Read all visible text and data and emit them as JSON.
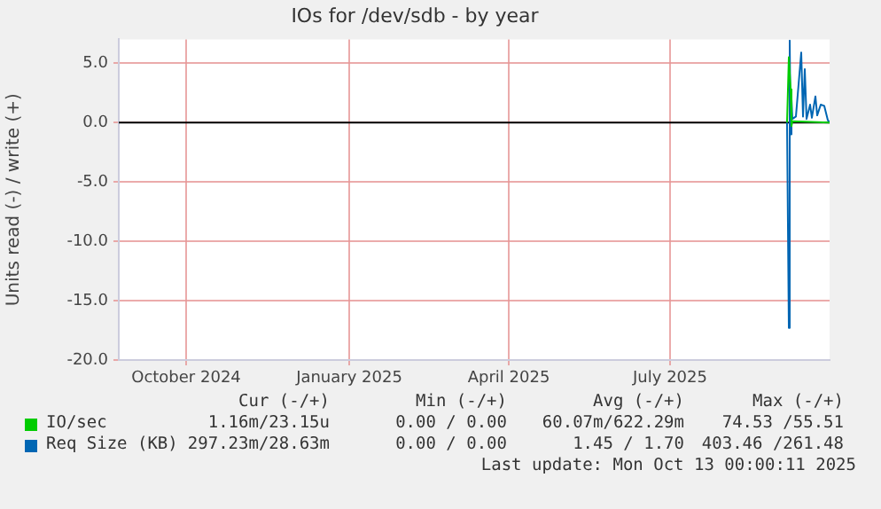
{
  "chart_data": {
    "type": "line",
    "title": "IOs for /dev/sdb - by year",
    "ylabel": "Units read (-) / write (+)",
    "xlim": [
      "2024-09-07",
      "2025-10-13"
    ],
    "xticks": [
      {
        "value": "2024-10-15",
        "label": "October 2024"
      },
      {
        "value": "2025-01-15",
        "label": "January 2025"
      },
      {
        "value": "2025-04-15",
        "label": "April 2025"
      },
      {
        "value": "2025-07-15",
        "label": "July 2025"
      }
    ],
    "ylim": [
      -20,
      7
    ],
    "yticks": [
      {
        "value": -20,
        "label": "-20.0"
      },
      {
        "value": -15,
        "label": "-15.0"
      },
      {
        "value": -10,
        "label": "-10.0"
      },
      {
        "value": -5,
        "label": "-5.0"
      },
      {
        "value": 0,
        "label": "0.0"
      },
      {
        "value": 5,
        "label": "5.0"
      }
    ],
    "grid": true,
    "legend": "bottom",
    "marker": "none",
    "line_style": "solid",
    "ref_lines": [
      {
        "axis": "y",
        "value": 0,
        "color": "#000000"
      }
    ],
    "series": [
      {
        "name": "IO/sec",
        "color": "#00cc00",
        "x": [
          "2025-09-19",
          "2025-09-20",
          "2025-09-21",
          "2025-09-21T12:00",
          "2025-09-22",
          "2025-10-13"
        ],
        "values": [
          0,
          5.5,
          2.8,
          -0.3,
          0.1,
          0
        ]
      },
      {
        "name": "Req Size (KB)",
        "color": "#0066b3",
        "x": [
          "2025-09-19",
          "2025-09-20",
          "2025-09-20T12:00",
          "2025-09-21",
          "2025-09-21T12:00",
          "2025-09-22",
          "2025-09-24",
          "2025-09-27",
          "2025-09-28",
          "2025-09-29",
          "2025-09-30",
          "2025-10-02",
          "2025-10-03",
          "2025-10-05",
          "2025-10-06",
          "2025-10-08",
          "2025-10-10",
          "2025-10-12",
          "2025-10-13"
        ],
        "values": [
          0,
          -17.3,
          6.9,
          -1,
          2,
          0.3,
          0.5,
          5.9,
          0.5,
          4.5,
          0.3,
          1.5,
          0.4,
          2.2,
          0.6,
          1.5,
          1.4,
          0.2,
          0
        ]
      }
    ],
    "annotations": [
      "Cur (-/+)",
      "Min (-/+)",
      "Avg (-/+)",
      "Max (-/+)",
      "1.16m/23.15u",
      "0.00 / 0.00",
      "60.07m/622.29m",
      "74.53 /55.51",
      "297.23m/28.63m",
      "0.00 / 0.00",
      "1.45 / 1.70",
      "403.46 /261.48",
      "Last update: Mon Oct 13 00:00:11 2025"
    ]
  }
}
